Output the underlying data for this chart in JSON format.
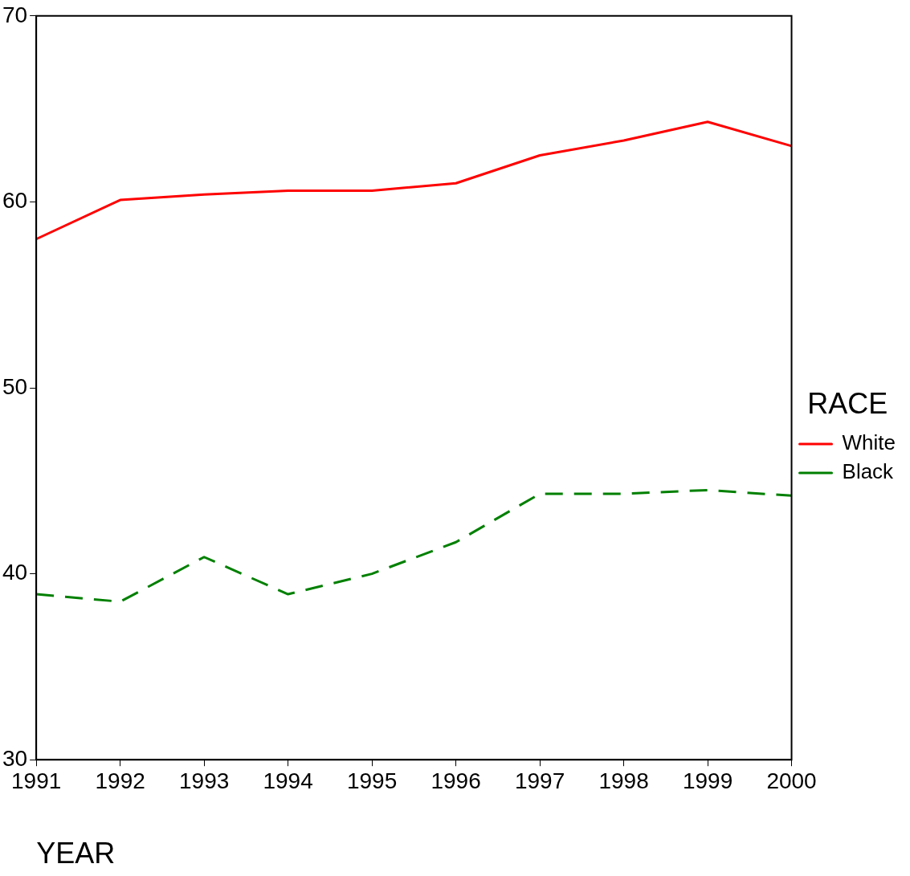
{
  "chart_data": {
    "type": "line",
    "xlabel": "YEAR",
    "legend_title": "RACE",
    "x": [
      1991,
      1992,
      1993,
      1994,
      1995,
      1996,
      1997,
      1998,
      1999,
      2000
    ],
    "xlim": [
      1991,
      2000
    ],
    "xticks": [
      1991,
      1992,
      1993,
      1994,
      1995,
      1996,
      1997,
      1998,
      1999,
      2000
    ],
    "ylim": [
      30,
      70
    ],
    "yticks": [
      30,
      40,
      50,
      60,
      70
    ],
    "series": [
      {
        "name": "White",
        "color": "#ff0000",
        "line_style": "solid",
        "values": [
          58.0,
          60.1,
          60.4,
          60.6,
          60.6,
          61.0,
          62.5,
          63.3,
          64.3,
          63.0
        ]
      },
      {
        "name": "Black",
        "color": "#008000",
        "line_style": "dashed",
        "values": [
          38.9,
          38.5,
          40.9,
          38.9,
          40.0,
          41.7,
          44.3,
          44.3,
          44.5,
          44.2
        ]
      }
    ],
    "grid": false,
    "legend": "right",
    "marker": "none"
  }
}
